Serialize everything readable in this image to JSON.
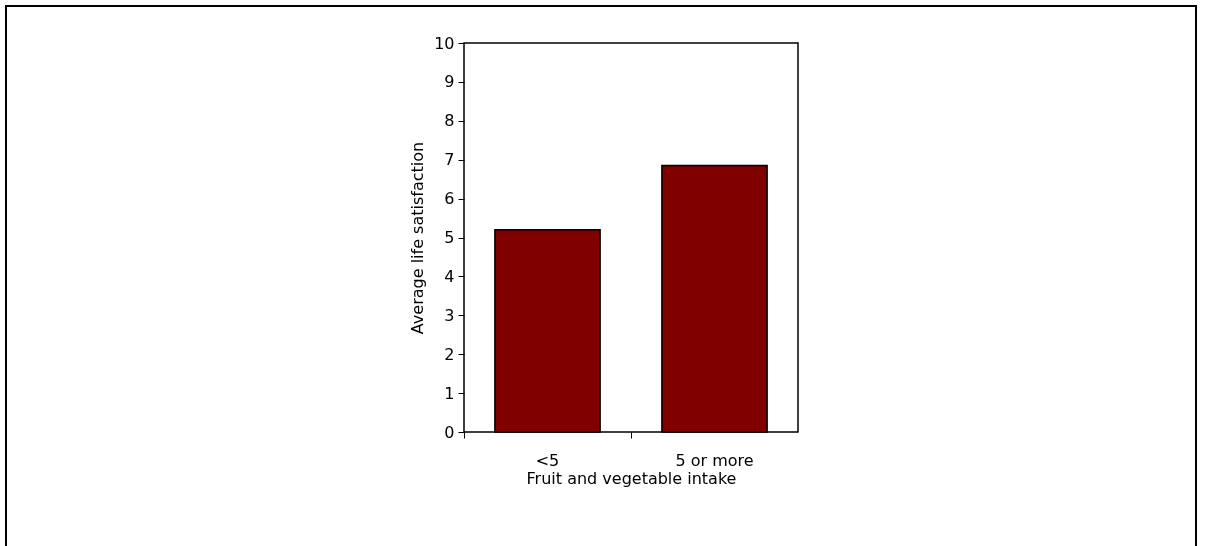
{
  "chart_data": {
    "type": "bar",
    "xlabel": "Fruit and vegetable intake",
    "ylabel": "Average life satisfaction",
    "categories": [
      "<5",
      "5 or more"
    ],
    "values": [
      5.2,
      6.85
    ],
    "color": "#800000",
    "ylim": [
      0,
      10
    ],
    "yticks": [
      0,
      1,
      2,
      3,
      4,
      5,
      6,
      7,
      8,
      9,
      10
    ],
    "grid": false,
    "legend": false
  }
}
